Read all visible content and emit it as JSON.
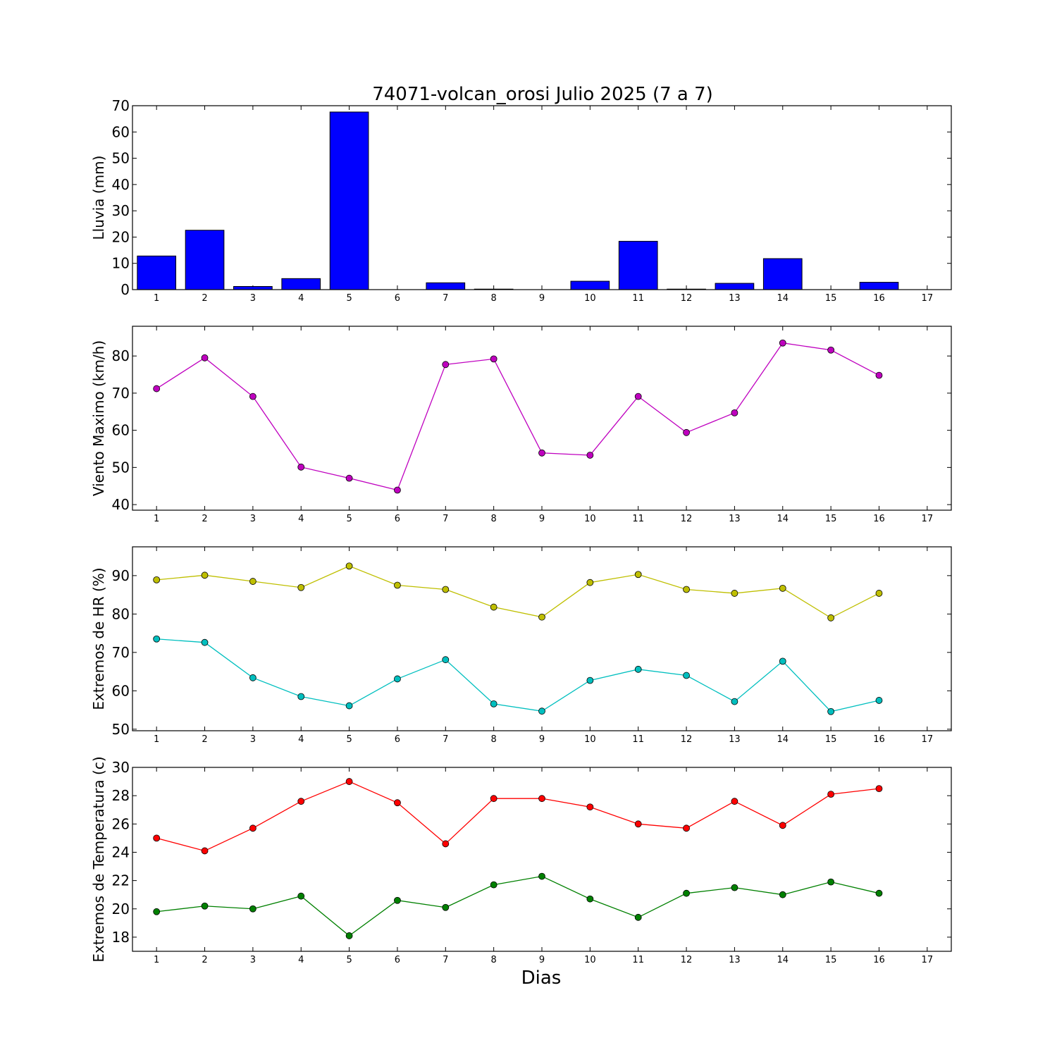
{
  "figure_title": "74071-volcan_orosi Julio 2025  (7 a 7)",
  "xlabel": "Dias",
  "chart_data": [
    {
      "type": "bar",
      "ylabel": "Lluvia (mm)",
      "categories": [
        1,
        2,
        3,
        4,
        5,
        6,
        7,
        8,
        9,
        10,
        11,
        12,
        13,
        14,
        15,
        16
      ],
      "values": [
        12.8,
        22.6,
        1.2,
        4.2,
        67.6,
        0.0,
        2.6,
        0.2,
        0.0,
        3.2,
        18.4,
        0.2,
        2.4,
        11.8,
        0.0,
        2.8
      ],
      "color": "#0000ff",
      "xlim": [
        0.5,
        17.5
      ],
      "xticks": [
        1,
        2,
        3,
        4,
        5,
        6,
        7,
        8,
        9,
        10,
        11,
        12,
        13,
        14,
        15,
        16,
        17
      ],
      "ylim": [
        0,
        70
      ],
      "yticks": [
        0,
        10,
        20,
        30,
        40,
        50,
        60,
        70
      ],
      "grid": false,
      "legend": "none"
    },
    {
      "type": "line",
      "ylabel": "Viento Maximo (km/h)",
      "x": [
        1,
        2,
        3,
        4,
        5,
        6,
        7,
        8,
        9,
        10,
        11,
        12,
        13,
        14,
        15,
        16
      ],
      "series": [
        {
          "values": [
            71.2,
            79.5,
            69.1,
            50.1,
            47.1,
            43.9,
            77.7,
            79.2,
            53.9,
            53.3,
            69.1,
            59.4,
            64.7,
            83.5,
            81.6,
            74.8
          ],
          "color": "#bf00bf"
        }
      ],
      "xlim": [
        0.5,
        17.5
      ],
      "xticks": [
        1,
        2,
        3,
        4,
        5,
        6,
        7,
        8,
        9,
        10,
        11,
        12,
        13,
        14,
        15,
        16,
        17
      ],
      "ylim": [
        38.5,
        88
      ],
      "yticks": [
        40,
        50,
        60,
        70,
        80
      ],
      "grid": false,
      "legend": "none"
    },
    {
      "type": "line",
      "ylabel": "Extremos de HR (%)",
      "x": [
        1,
        2,
        3,
        4,
        5,
        6,
        7,
        8,
        9,
        10,
        11,
        12,
        13,
        14,
        15,
        16
      ],
      "series": [
        {
          "values": [
            88.9,
            90.1,
            88.5,
            86.9,
            92.5,
            87.5,
            86.4,
            81.8,
            79.2,
            88.2,
            90.3,
            86.4,
            85.4,
            86.7,
            79.0,
            85.4
          ],
          "color": "#bfbf00"
        },
        {
          "values": [
            73.5,
            72.6,
            63.4,
            58.5,
            56.1,
            63.1,
            68.1,
            56.6,
            54.7,
            62.7,
            65.6,
            64.0,
            57.2,
            67.7,
            54.6,
            57.5
          ],
          "color": "#00bfbf"
        }
      ],
      "xlim": [
        0.5,
        17.5
      ],
      "xticks": [
        1,
        2,
        3,
        4,
        5,
        6,
        7,
        8,
        9,
        10,
        11,
        12,
        13,
        14,
        15,
        16,
        17
      ],
      "ylim": [
        49.6,
        97.5
      ],
      "yticks": [
        50,
        60,
        70,
        80,
        90
      ],
      "grid": false,
      "legend": "none"
    },
    {
      "type": "line",
      "ylabel": "Extremos de Temperatura (c)",
      "x": [
        1,
        2,
        3,
        4,
        5,
        6,
        7,
        8,
        9,
        10,
        11,
        12,
        13,
        14,
        15,
        16
      ],
      "series": [
        {
          "values": [
            25.0,
            24.1,
            25.7,
            27.6,
            29.0,
            27.5,
            24.6,
            27.8,
            27.8,
            27.2,
            26.0,
            25.7,
            27.6,
            25.9,
            28.1,
            28.5
          ],
          "color": "#ff0000"
        },
        {
          "values": [
            19.8,
            20.2,
            20.0,
            20.9,
            18.1,
            20.6,
            20.1,
            21.7,
            22.3,
            20.7,
            19.4,
            21.1,
            21.5,
            21.0,
            21.9,
            21.1
          ],
          "color": "#008000"
        }
      ],
      "xlim": [
        0.5,
        17.5
      ],
      "xticks": [
        1,
        2,
        3,
        4,
        5,
        6,
        7,
        8,
        9,
        10,
        11,
        12,
        13,
        14,
        15,
        16,
        17
      ],
      "ylim": [
        17.0,
        30.0
      ],
      "yticks": [
        18,
        20,
        22,
        24,
        26,
        28,
        30
      ],
      "grid": false,
      "legend": "none"
    }
  ]
}
